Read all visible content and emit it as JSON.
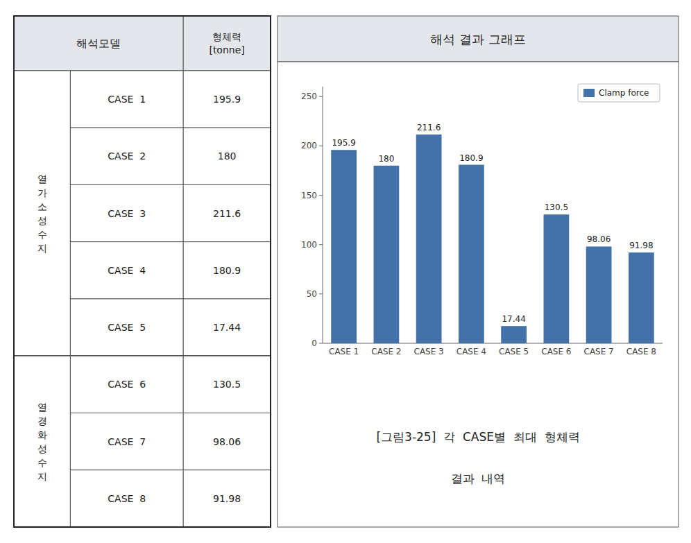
{
  "chart_data": {
    "type": "bar",
    "title": "해석 결과 그래프",
    "categories": [
      "CASE 1",
      "CASE 2",
      "CASE 3",
      "CASE 4",
      "CASE 5",
      "CASE 6",
      "CASE 7",
      "CASE 8"
    ],
    "series": [
      {
        "name": "Clamp force",
        "color": "#4472a8",
        "values": [
          195.9,
          180.0,
          211.6,
          180.9,
          17.44,
          130.5,
          98.06,
          91.98
        ],
        "value_labels": [
          "195.9",
          "180",
          "211.6",
          "180.9",
          "17.44",
          "130.5",
          "98.06",
          "91.98"
        ]
      }
    ],
    "ylim": [
      0,
      260
    ],
    "yticks": [
      0,
      50,
      100,
      150,
      200,
      250
    ],
    "grid": false,
    "legend": "upper right",
    "data_labels": true
  },
  "table": {
    "headers": [
      "해석모델",
      "형체력\n[tonne]"
    ],
    "groups": [
      {
        "label": "열\n가\n소\n성\n수\n지",
        "cases": [
          "CASE  1",
          "CASE  2",
          "CASE  3",
          "CASE  4",
          "CASE  5"
        ]
      },
      {
        "label": "열\n경\n화\n성\n수\n지",
        "cases": [
          "CASE  6",
          "CASE  7",
          "CASE  8"
        ]
      }
    ]
  },
  "caption": [
    "[그림3-25]  각  CASE별  최대  형체력",
    "결과  내역"
  ]
}
